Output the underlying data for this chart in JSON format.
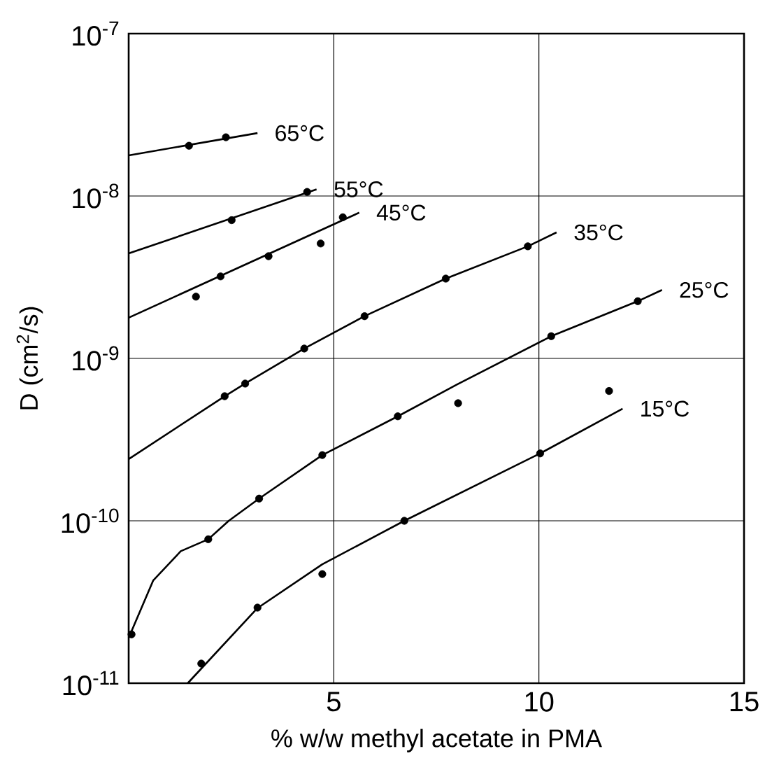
{
  "chart_data": {
    "type": "line",
    "xlabel": "% w/w methyl acetate in PMA",
    "ylabel": "D (cm$^{2}$/s)",
    "log": "y",
    "grid": true,
    "xlim": [
      0,
      15
    ],
    "xticks": [
      5,
      10,
      15
    ],
    "ylim": [
      1e-11,
      1e-07
    ],
    "yticks": [
      {
        "value": 1e-11,
        "label": "10$^{-11}$"
      },
      {
        "value": 1e-10,
        "label": "10$^{-10}$"
      },
      {
        "value": 1e-09,
        "label": "10$^{-9}$"
      },
      {
        "value": 1e-08,
        "label": "10$^{-8}$"
      },
      {
        "value": 1e-07,
        "label": "10$^{-7}$"
      }
    ],
    "series": [
      {
        "name": "65°C",
        "marker": "none",
        "color": "#000000",
        "x": [
          0,
          3.14
        ],
        "values": [
          1.78e-08,
          2.44e-08
        ]
      },
      {
        "type": "scatter",
        "marker": "circle",
        "color": "#000000",
        "x": [
          1.47,
          2.37
        ],
        "values": [
          2.04e-08,
          2.3e-08
        ]
      },
      {
        "name": "55°C",
        "marker": "none",
        "color": "#000000",
        "x": [
          0,
          4.58
        ],
        "values": [
          4.43e-09,
          1.1e-08
        ]
      },
      {
        "type": "scatter",
        "marker": "circle",
        "color": "#000000",
        "x": [
          2.51,
          4.35
        ],
        "values": [
          7.1e-09,
          1.06e-08
        ]
      },
      {
        "name": "45°C",
        "marker": "none",
        "color": "#000000",
        "x": [
          0,
          5.62
        ],
        "values": [
          1.78e-09,
          7.9e-09
        ]
      },
      {
        "type": "scatter",
        "marker": "circle",
        "color": "#000000",
        "x": [
          1.64,
          2.24,
          3.41,
          4.68,
          5.22
        ],
        "values": [
          2.4e-09,
          3.2e-09,
          4.26e-09,
          5.1e-09,
          7.4e-09
        ]
      },
      {
        "name": "35°C",
        "marker": "none",
        "color": "#000000",
        "x": [
          0,
          2.34,
          2.84,
          4.28,
          5.75,
          7.73,
          9.73,
          10.43
        ],
        "values": [
          2.4e-10,
          5.85e-10,
          7e-10,
          1.15e-09,
          1.82e-09,
          3.1e-09,
          4.9e-09,
          5.97e-09
        ]
      },
      {
        "type": "scatter",
        "marker": "circle",
        "color": "#000000",
        "x": [
          2.34,
          2.84,
          4.28,
          5.75,
          7.73,
          9.73
        ],
        "values": [
          5.85e-10,
          7e-10,
          1.15e-09,
          1.82e-09,
          3.1e-09,
          4.9e-09
        ]
      },
      {
        "name": "25°C",
        "marker": "none",
        "color": "#000000",
        "x": [
          0,
          0.6,
          1.27,
          1.94,
          2.44,
          3.18,
          4.72,
          6.56,
          8.0,
          10.3,
          12.41,
          13.0
        ],
        "values": [
          1.9e-11,
          4.3e-11,
          6.5e-11,
          7.7e-11,
          1e-10,
          1.37e-10,
          2.54e-10,
          4.4e-10,
          6.9e-10,
          1.37e-09,
          2.25e-09,
          2.64e-09
        ]
      },
      {
        "type": "scatter",
        "marker": "circle",
        "color": "#000000",
        "x": [
          0.07,
          1.94,
          3.18,
          4.72,
          6.56,
          8.03,
          10.3,
          12.41
        ],
        "values": [
          2e-11,
          7.7e-11,
          1.37e-10,
          2.54e-10,
          4.4e-10,
          5.3e-10,
          1.37e-09,
          2.25e-09
        ]
      },
      {
        "name": "15°C",
        "marker": "none",
        "color": "#000000",
        "x": [
          1.44,
          3.14,
          4.72,
          6.72,
          10.03,
          12.04
        ],
        "values": [
          1e-11,
          2.9e-11,
          5.4e-11,
          1e-10,
          2.6e-10,
          4.9e-10
        ]
      },
      {
        "type": "scatter",
        "marker": "circle",
        "color": "#000000",
        "x": [
          1.77,
          3.14,
          4.72,
          6.72,
          10.03,
          11.71
        ],
        "values": [
          1.32e-11,
          2.92e-11,
          4.7e-11,
          1e-10,
          2.6e-10,
          6.3e-10
        ]
      }
    ]
  }
}
